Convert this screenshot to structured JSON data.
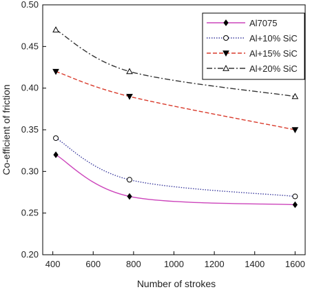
{
  "chart_data": {
    "type": "line",
    "title": "",
    "xlabel": "Number of strokes",
    "ylabel": "Co-efficient of friction",
    "xlim": [
      350,
      1650
    ],
    "ylim": [
      0.2,
      0.5
    ],
    "x_ticks": [
      400,
      600,
      800,
      1000,
      1200,
      1400,
      1600
    ],
    "x_tick_labels": [
      "400",
      "600",
      "800",
      "1000",
      "1200",
      "1400",
      "1600"
    ],
    "y_ticks": [
      0.2,
      0.25,
      0.3,
      0.35,
      0.4,
      0.45,
      0.5
    ],
    "y_tick_labels": [
      "0.20",
      "0.25",
      "0.30",
      "0.35",
      "0.40",
      "0.45",
      "0.50"
    ],
    "grid": false,
    "legend_position": "top-right",
    "x": [
      415,
      780,
      1600
    ],
    "series": [
      {
        "name": "Al7075",
        "values": [
          0.32,
          0.27,
          0.26
        ],
        "color": "#cc44bb",
        "dash": "solid",
        "marker": "filled-diamond"
      },
      {
        "name": "Al+10% SiC",
        "values": [
          0.34,
          0.29,
          0.27
        ],
        "color": "#3b3b9e",
        "dash": "dotted",
        "marker": "open-circle"
      },
      {
        "name": "Al+15% SiC",
        "values": [
          0.42,
          0.39,
          0.35
        ],
        "color": "#d93a2b",
        "dash": "dashed",
        "marker": "filled-triangle-down"
      },
      {
        "name": "Al+20% SiC",
        "values": [
          0.47,
          0.42,
          0.39
        ],
        "color": "#333333",
        "dash": "dash-dot",
        "marker": "open-triangle-up"
      }
    ]
  }
}
